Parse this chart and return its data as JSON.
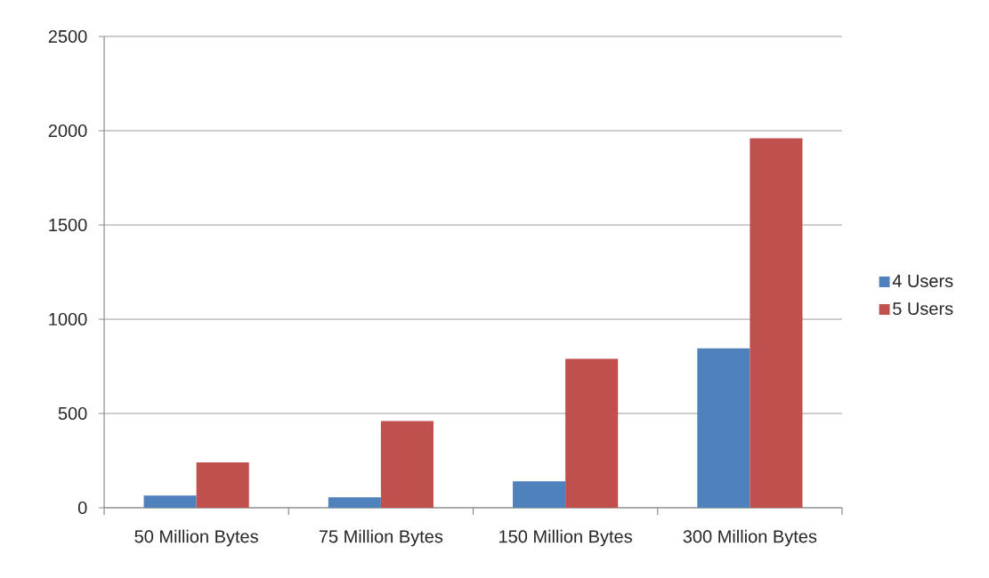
{
  "chart_data": {
    "type": "bar",
    "categories": [
      "50 Million Bytes",
      "75 Million Bytes",
      "150 Million Bytes",
      "300 Million Bytes"
    ],
    "series": [
      {
        "name": "4 Users",
        "color": "#4f81bd",
        "values": [
          65,
          55,
          140,
          845
        ]
      },
      {
        "name": "5 Users",
        "color": "#c0504d",
        "values": [
          240,
          460,
          790,
          1960
        ]
      }
    ],
    "ylim": [
      0,
      2500
    ],
    "yticks": [
      0,
      500,
      1000,
      1500,
      2000,
      2500
    ],
    "grid": "y",
    "legend": "right"
  }
}
